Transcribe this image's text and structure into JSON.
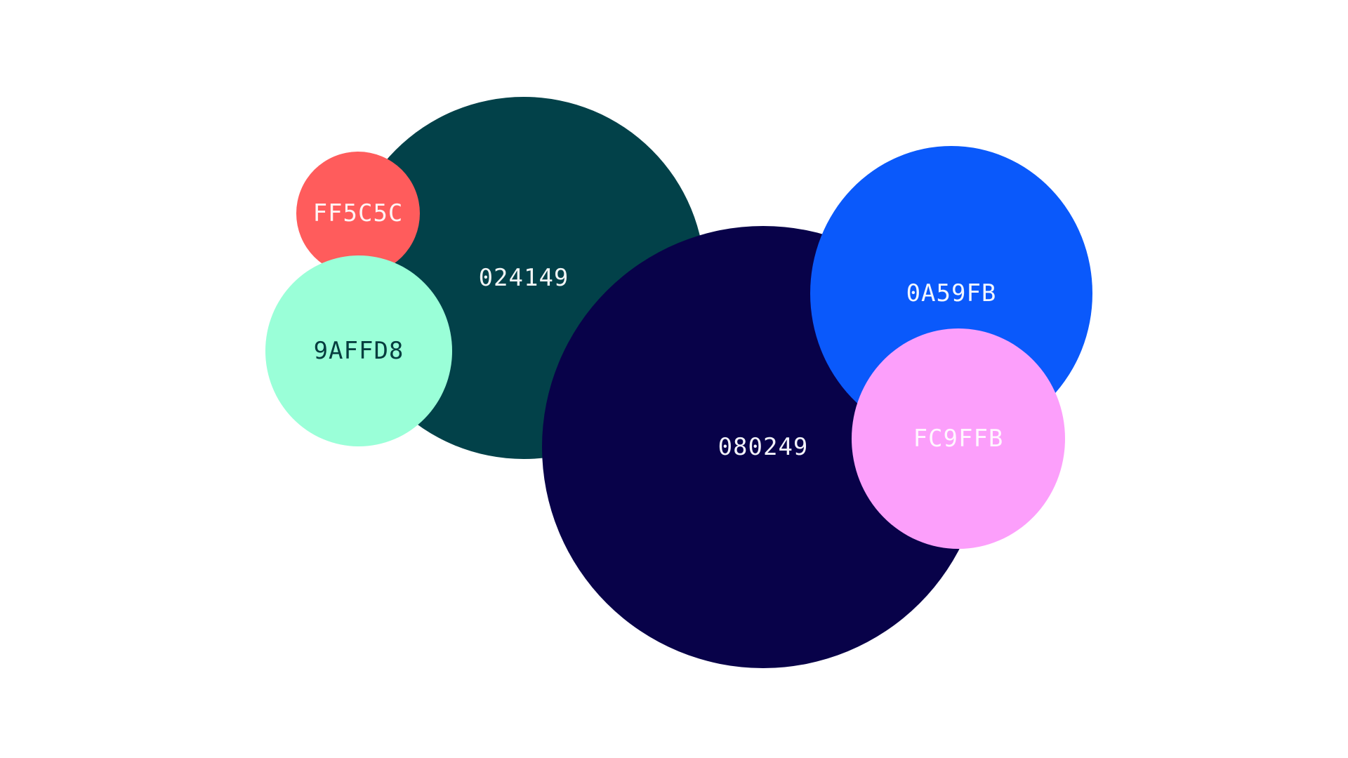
{
  "bubbles": [
    {
      "label": "024149",
      "fill": "#024149",
      "text_color": "#f1f5f5"
    },
    {
      "label": "FF5C5C",
      "fill": "#FF5C5C",
      "text_color": "#fff4f4"
    },
    {
      "label": "9AFFD8",
      "fill": "#9AFFD8",
      "text_color": "#063d3f"
    },
    {
      "label": "080249",
      "fill": "#080249",
      "text_color": "#f3f3fb"
    },
    {
      "label": "0A59FB",
      "fill": "#0A59FB",
      "text_color": "#f2f6ff"
    },
    {
      "label": "FC9FFB",
      "fill": "#FC9FFB",
      "text_color": "#fff6ff"
    }
  ]
}
